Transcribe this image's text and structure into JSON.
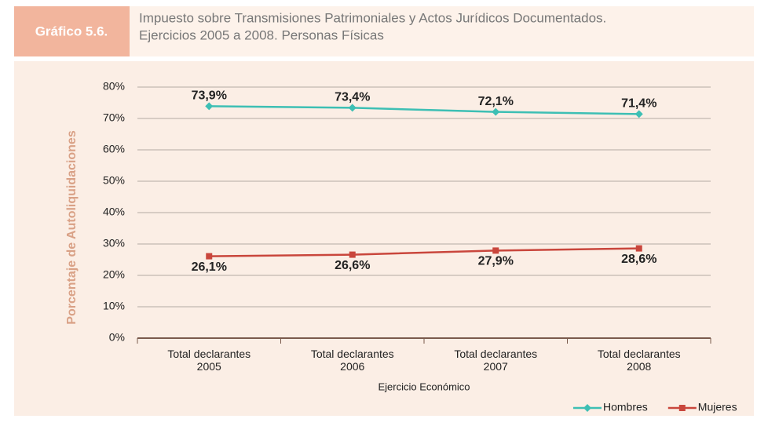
{
  "chart_data": {
    "type": "line",
    "label": "Gráfico 5.6.",
    "title": [
      "Impuesto sobre Transmisiones Patrimoniales y Actos Jurídicos Documentados.",
      "Ejercicios 2005 a 2008. Personas Físicas"
    ],
    "y_label": "Porcentaje de Autoliquidaciones",
    "x_label": "Ejercicio Económico",
    "categories": [
      "Total declarantes 2005",
      "Total declarantes 2006",
      "Total declarantes 2007",
      "Total declarantes 2008"
    ],
    "series": [
      {
        "name": "Hombres",
        "color": "#3dbfb4",
        "marker": "diamond",
        "values": [
          73.9,
          73.4,
          72.1,
          71.4
        ],
        "value_labels": [
          "73,9%",
          "73,4%",
          "72,1%",
          "71,4%"
        ]
      },
      {
        "name": "Mujeres",
        "color": "#c9463c",
        "marker": "square",
        "values": [
          26.1,
          26.6,
          27.9,
          28.6
        ],
        "value_labels": [
          "26,1%",
          "26,6%",
          "27,9%",
          "28,6%"
        ]
      }
    ],
    "ylim": [
      0,
      80
    ],
    "yticks": [
      {
        "value": 0,
        "label": "0%"
      },
      {
        "value": 10,
        "label": "10%"
      },
      {
        "value": 20,
        "label": "20%"
      },
      {
        "value": 30,
        "label": "30%"
      },
      {
        "value": 40,
        "label": "40%"
      },
      {
        "value": 50,
        "label": "50%"
      },
      {
        "value": 60,
        "label": "60%"
      },
      {
        "value": 70,
        "label": "70%"
      },
      {
        "value": 80,
        "label": "80%"
      }
    ],
    "grid": true,
    "legend": "bottom-right"
  }
}
